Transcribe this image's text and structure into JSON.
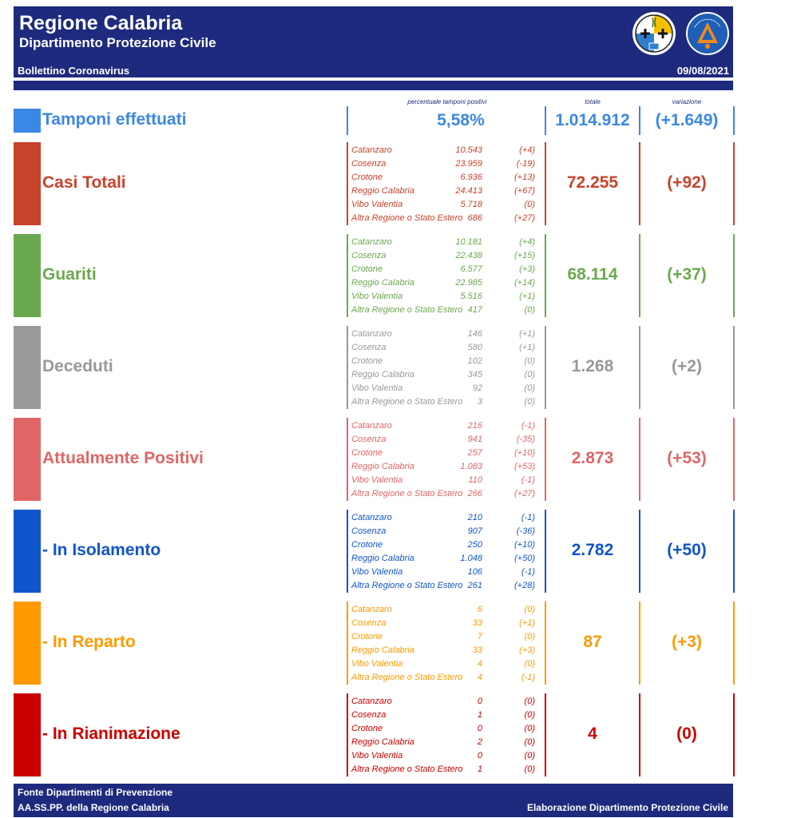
{
  "header": {
    "title": "Regione Calabria",
    "subtitle": "Dipartimento Protezione Civile",
    "bulletin": "Bollettino Coronavirus",
    "date": "09/08/2021",
    "navy": "#1d2a7d"
  },
  "columns": {
    "percent": "percentuale tamponi positivi",
    "total": "totale",
    "variation": "variazione"
  },
  "tamponi": {
    "label": "Tamponi effettuati",
    "percent": "5,58%",
    "total": "1.014.912",
    "variation": "(+1.649)",
    "color": "#3b87e6"
  },
  "sections": [
    {
      "key": "casi",
      "label": "Casi Totali",
      "color": "#c8432b",
      "total": "72.255",
      "variation": "(+92)",
      "rows": [
        {
          "name": "Catanzaro",
          "value": "10.543",
          "delta": "(+4)"
        },
        {
          "name": "Cosenza",
          "value": "23.959",
          "delta": "(-19)"
        },
        {
          "name": "Crotone",
          "value": "6.936",
          "delta": "(+13)"
        },
        {
          "name": "Reggio Calabria",
          "value": "24.413",
          "delta": "(+67)"
        },
        {
          "name": "Vibo Valentia",
          "value": "5.718",
          "delta": "(0)"
        },
        {
          "name": "Altra Regione o Stato Estero",
          "value": "686",
          "delta": "(+27)"
        }
      ]
    },
    {
      "key": "guariti",
      "label": "Guariti",
      "color": "#6aa84f",
      "total": "68.114",
      "variation": "(+37)",
      "rows": [
        {
          "name": "Catanzaro",
          "value": "10.181",
          "delta": "(+4)"
        },
        {
          "name": "Cosenza",
          "value": "22.438",
          "delta": "(+15)"
        },
        {
          "name": "Crotone",
          "value": "6.577",
          "delta": "(+3)"
        },
        {
          "name": "Reggio Calabria",
          "value": "22.985",
          "delta": "(+14)"
        },
        {
          "name": "Vibo Valentia",
          "value": "5.516",
          "delta": "(+1)"
        },
        {
          "name": "Altra Regione o Stato Estero",
          "value": "417",
          "delta": "(0)"
        }
      ]
    },
    {
      "key": "deceduti",
      "label": "Deceduti",
      "color": "#999999",
      "total": "1.268",
      "variation": "(+2)",
      "rows": [
        {
          "name": "Catanzaro",
          "value": "146",
          "delta": "(+1)"
        },
        {
          "name": "Cosenza",
          "value": "580",
          "delta": "(+1)"
        },
        {
          "name": "Crotone",
          "value": "102",
          "delta": "(0)"
        },
        {
          "name": "Reggio Calabria",
          "value": "345",
          "delta": "(0)"
        },
        {
          "name": "Vibo Valentia",
          "value": "92",
          "delta": "(0)"
        },
        {
          "name": "Altra Regione o Stato Estero",
          "value": "3",
          "delta": "(0)"
        }
      ]
    },
    {
      "key": "positivi",
      "label": "Attualmente Positivi",
      "color": "#e06666",
      "total": "2.873",
      "variation": "(+53)",
      "rows": [
        {
          "name": "Catanzaro",
          "value": "216",
          "delta": "(-1)"
        },
        {
          "name": "Cosenza",
          "value": "941",
          "delta": "(-35)"
        },
        {
          "name": "Crotone",
          "value": "257",
          "delta": "(+10)"
        },
        {
          "name": "Reggio Calabria",
          "value": "1.083",
          "delta": "(+53)"
        },
        {
          "name": "Vibo Valentia",
          "value": "110",
          "delta": "(-1)"
        },
        {
          "name": "Altra Regione o Stato Estero",
          "value": "266",
          "delta": "(+27)"
        }
      ]
    },
    {
      "key": "isolamento",
      "label": " - In Isolamento",
      "color": "#1155cc",
      "total": "2.782",
      "variation": "(+50)",
      "rows": [
        {
          "name": "Catanzaro",
          "value": "210",
          "delta": "(-1)"
        },
        {
          "name": "Cosenza",
          "value": "907",
          "delta": "(-36)"
        },
        {
          "name": "Crotone",
          "value": "250",
          "delta": "(+10)"
        },
        {
          "name": "Reggio Calabria",
          "value": "1.048",
          "delta": "(+50)"
        },
        {
          "name": "Vibo Valentia",
          "value": "106",
          "delta": "(-1)"
        },
        {
          "name": "Altra Regione o Stato Estero",
          "value": "261",
          "delta": "(+28)"
        }
      ]
    },
    {
      "key": "reparto",
      "label": " - In Reparto",
      "color": "#ff9900",
      "total": "87",
      "variation": "(+3)",
      "rows": [
        {
          "name": "Catanzaro",
          "value": "6",
          "delta": "(0)"
        },
        {
          "name": "Cosenza",
          "value": "33",
          "delta": "(+1)"
        },
        {
          "name": "Crotone",
          "value": "7",
          "delta": "(0)"
        },
        {
          "name": "Reggio Calabria",
          "value": "33",
          "delta": "(+3)"
        },
        {
          "name": "Vibo Valentia",
          "value": "4",
          "delta": "(0)"
        },
        {
          "name": "Altra Regione o Stato Estero",
          "value": "4",
          "delta": "(-1)"
        }
      ]
    },
    {
      "key": "rianimazione",
      "label": " - In Rianimazione",
      "color": "#cc0000",
      "total": "4",
      "variation": "(0)",
      "rows": [
        {
          "name": "Catanzaro",
          "value": "0",
          "delta": "(0)"
        },
        {
          "name": "Cosenza",
          "value": "1",
          "delta": "(0)"
        },
        {
          "name": "Crotone",
          "value": "0",
          "delta": "(0)"
        },
        {
          "name": "Reggio Calabria",
          "value": "2",
          "delta": "(0)"
        },
        {
          "name": "Vibo Valentia",
          "value": "0",
          "delta": "(0)"
        },
        {
          "name": "Altra Regione o Stato Estero",
          "value": "1",
          "delta": "(0)"
        }
      ]
    }
  ],
  "footer": {
    "line1": "Fonte Dipartimenti di Prevenzione",
    "line2": "AA.SS.PP.  della Regione Calabria",
    "right": "Elaborazione Dipartimento Protezione Civile"
  },
  "logos": {
    "regione": "regione-calabria-crest-icon",
    "protezione": "protezione-civile-logo-icon"
  }
}
